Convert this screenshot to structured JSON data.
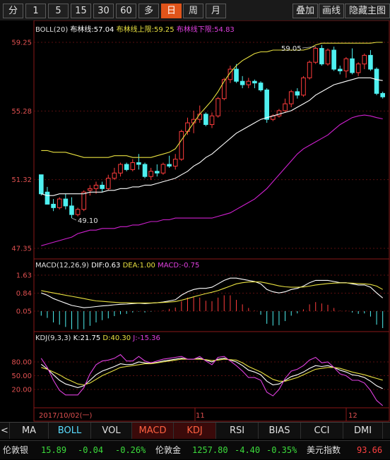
{
  "toolbar": {
    "periods": [
      "分",
      "1",
      "5",
      "15",
      "30",
      "60",
      "多",
      "日",
      "周",
      "月"
    ],
    "active_period": "日",
    "right_buttons": [
      "叠加",
      "画线",
      "隐藏主图"
    ]
  },
  "boll_header": {
    "name": "BOLL(20)",
    "mid": "布林线:57.04",
    "upper": "布林线上限:59.25",
    "lower": "布林线下限:54.83"
  },
  "main_axis": [
    "59.25",
    "55.28",
    "51.32",
    "47.35"
  ],
  "annotations": {
    "high": "59.05",
    "low": "49.10"
  },
  "macd_header": {
    "name": "MACD(12,26,9)",
    "dif": "DIF:0.63",
    "dea": "DEA:1.00",
    "macd": "MACD:-0.75"
  },
  "macd_axis": [
    "1.63",
    "0.84",
    "0.05"
  ],
  "kdj_header": {
    "name": "KDJ(9,3,3)",
    "k": "K:21.75",
    "d": "D:40.30",
    "j": "J:-15.36"
  },
  "kdj_axis": [
    "80.00",
    "50.00",
    "20.00"
  ],
  "date_axis": {
    "start": "2017/10/02(一)",
    "m11": "11",
    "m12": "12"
  },
  "tabs": [
    "<",
    "MA",
    "BOLL",
    "VOL",
    "MACD",
    "KDJ",
    "RSI",
    "BIAS",
    "CCI",
    "DMI"
  ],
  "ticker": [
    {
      "name": "伦敦银",
      "price": "15.89",
      "chg": "-0.04",
      "pct": "-0.26%"
    },
    {
      "name": "伦敦金",
      "price": "1257.80",
      "chg": "-4.40",
      "pct": "-0.35%"
    },
    {
      "name": "美元指数",
      "price": "93.66"
    }
  ],
  "colors": {
    "up": "#ff3c3c",
    "down": "#4ff0f0",
    "boll_mid": "#ffffff",
    "boll_upper": "#e8e040",
    "boll_lower": "#d020d0",
    "axis_red": "#e05050",
    "active_tab_orange": "#e0541a"
  },
  "chart_data": {
    "type": "candlestick",
    "price_axis_ticks": [
      59.25,
      55.28,
      51.32,
      47.35
    ],
    "ohlc": [
      [
        51.6,
        51.6,
        50.4,
        50.5
      ],
      [
        50.6,
        50.9,
        49.9,
        49.9
      ],
      [
        49.9,
        50.2,
        49.5,
        49.7
      ],
      [
        49.7,
        50.3,
        49.6,
        50.2
      ],
      [
        50.2,
        50.5,
        49.6,
        49.8
      ],
      [
        49.8,
        50.3,
        49.1,
        49.3
      ],
      [
        49.3,
        49.7,
        49.2,
        49.6
      ],
      [
        49.6,
        50.7,
        49.5,
        50.6
      ],
      [
        50.7,
        51.0,
        50.4,
        50.8
      ],
      [
        50.8,
        51.2,
        50.5,
        51.0
      ],
      [
        51.0,
        51.2,
        50.6,
        50.8
      ],
      [
        50.8,
        51.6,
        50.7,
        51.4
      ],
      [
        51.4,
        52.0,
        51.3,
        51.7
      ],
      [
        51.7,
        52.3,
        51.5,
        52.2
      ],
      [
        52.2,
        52.3,
        51.8,
        51.9
      ],
      [
        51.9,
        52.5,
        51.8,
        52.3
      ],
      [
        52.3,
        52.8,
        51.9,
        52.2
      ],
      [
        52.2,
        52.3,
        51.4,
        51.5
      ],
      [
        51.5,
        52.0,
        51.3,
        51.8
      ],
      [
        51.8,
        52.2,
        51.5,
        51.7
      ],
      [
        51.7,
        52.3,
        51.6,
        52.2
      ],
      [
        52.2,
        52.7,
        52.0,
        52.1
      ],
      [
        52.1,
        52.8,
        51.9,
        52.5
      ],
      [
        52.5,
        54.2,
        52.4,
        54.1
      ],
      [
        54.1,
        54.9,
        53.9,
        54.6
      ],
      [
        54.6,
        55.3,
        54.0,
        54.8
      ],
      [
        54.8,
        55.6,
        54.6,
        55.1
      ],
      [
        55.1,
        55.2,
        54.4,
        54.5
      ],
      [
        54.5,
        55.2,
        54.3,
        55.0
      ],
      [
        55.0,
        56.1,
        54.9,
        56.0
      ],
      [
        56.0,
        57.2,
        55.9,
        57.1
      ],
      [
        57.1,
        57.9,
        56.9,
        57.7
      ],
      [
        57.7,
        58.0,
        56.9,
        57.0
      ],
      [
        57.0,
        57.3,
        56.6,
        56.8
      ],
      [
        56.8,
        57.2,
        56.6,
        57.0
      ],
      [
        57.0,
        57.1,
        56.6,
        56.9
      ],
      [
        56.9,
        57.0,
        56.4,
        56.5
      ],
      [
        56.5,
        56.6,
        54.6,
        54.8
      ],
      [
        54.8,
        55.1,
        54.7,
        55.0
      ],
      [
        55.0,
        55.4,
        54.9,
        55.3
      ],
      [
        55.3,
        56.0,
        55.2,
        55.7
      ],
      [
        55.7,
        56.5,
        55.5,
        56.4
      ],
      [
        56.4,
        56.6,
        56.0,
        56.2
      ],
      [
        56.2,
        57.3,
        56.1,
        57.2
      ],
      [
        57.2,
        58.2,
        57.1,
        58.1
      ],
      [
        58.1,
        59.0,
        58.0,
        58.9
      ],
      [
        58.9,
        59.1,
        57.9,
        58.0
      ],
      [
        58.0,
        58.9,
        57.9,
        58.8
      ],
      [
        58.8,
        59.0,
        57.6,
        57.7
      ],
      [
        57.7,
        57.9,
        57.4,
        57.6
      ],
      [
        57.6,
        58.4,
        57.2,
        58.3
      ],
      [
        58.3,
        58.9,
        57.4,
        57.5
      ],
      [
        57.5,
        58.1,
        57.3,
        58.0
      ],
      [
        58.0,
        58.6,
        57.7,
        58.5
      ],
      [
        58.5,
        58.8,
        57.6,
        57.7
      ],
      [
        57.7,
        57.8,
        56.2,
        56.3
      ],
      [
        56.3,
        56.4,
        56.0,
        56.1
      ]
    ],
    "boll_upper": [
      53.0,
      53.0,
      52.9,
      52.9,
      52.9,
      52.8,
      52.7,
      52.6,
      52.6,
      52.6,
      52.6,
      52.6,
      52.7,
      52.7,
      52.7,
      52.6,
      52.6,
      52.6,
      52.6,
      52.7,
      52.8,
      52.9,
      53.1,
      53.6,
      54.1,
      54.6,
      55.1,
      55.5,
      55.9,
      56.4,
      57.0,
      57.5,
      57.9,
      58.2,
      58.4,
      58.6,
      58.7,
      58.7,
      58.8,
      58.8,
      58.8,
      58.8,
      58.8,
      58.8,
      58.9,
      59.1,
      59.2,
      59.2,
      59.2,
      59.2,
      59.2,
      59.2,
      59.2,
      59.2,
      59.2,
      59.25,
      59.25
    ],
    "boll_mid": [
      50.5,
      50.4,
      50.4,
      50.5,
      50.5,
      50.5,
      50.5,
      50.5,
      50.6,
      50.6,
      50.6,
      50.7,
      50.7,
      50.8,
      50.8,
      50.9,
      50.9,
      51.0,
      51.0,
      51.1,
      51.2,
      51.3,
      51.4,
      51.6,
      51.8,
      52.1,
      52.3,
      52.6,
      52.8,
      53.1,
      53.4,
      53.7,
      54.0,
      54.2,
      54.4,
      54.6,
      54.8,
      54.9,
      55.0,
      55.1,
      55.2,
      55.3,
      55.5,
      55.7,
      55.9,
      56.2,
      56.4,
      56.6,
      56.8,
      56.9,
      57.0,
      57.1,
      57.2,
      57.2,
      57.2,
      57.1,
      57.04
    ],
    "boll_lower": [
      47.5,
      47.6,
      47.7,
      47.8,
      47.9,
      48.0,
      48.2,
      48.3,
      48.4,
      48.4,
      48.5,
      48.5,
      48.5,
      48.6,
      48.6,
      48.7,
      48.7,
      48.8,
      48.9,
      48.9,
      49.0,
      49.0,
      49.1,
      49.1,
      49.1,
      49.1,
      49.1,
      49.1,
      49.1,
      49.2,
      49.3,
      49.4,
      49.6,
      49.8,
      50.0,
      50.2,
      50.5,
      50.8,
      51.2,
      51.6,
      52.0,
      52.4,
      52.8,
      53.1,
      53.3,
      53.5,
      53.7,
      53.9,
      54.2,
      54.5,
      54.7,
      54.9,
      55.0,
      55.05,
      55.0,
      54.9,
      54.83
    ],
    "macd": {
      "ticks": [
        1.63,
        0.84,
        0.05
      ],
      "dif": [
        0.85,
        0.75,
        0.6,
        0.5,
        0.4,
        0.3,
        0.25,
        0.2,
        0.22,
        0.25,
        0.28,
        0.3,
        0.33,
        0.35,
        0.36,
        0.38,
        0.4,
        0.38,
        0.4,
        0.42,
        0.45,
        0.5,
        0.55,
        0.75,
        0.9,
        1.0,
        1.05,
        1.05,
        1.1,
        1.25,
        1.4,
        1.5,
        1.5,
        1.45,
        1.4,
        1.35,
        1.25,
        1.0,
        0.9,
        0.85,
        0.9,
        1.0,
        1.05,
        1.15,
        1.3,
        1.4,
        1.4,
        1.4,
        1.35,
        1.3,
        1.3,
        1.25,
        1.2,
        1.2,
        1.1,
        0.85,
        0.63
      ],
      "dea": [
        0.95,
        0.9,
        0.85,
        0.8,
        0.75,
        0.7,
        0.65,
        0.6,
        0.55,
        0.5,
        0.48,
        0.46,
        0.44,
        0.42,
        0.42,
        0.41,
        0.41,
        0.41,
        0.41,
        0.42,
        0.43,
        0.45,
        0.47,
        0.53,
        0.6,
        0.68,
        0.75,
        0.82,
        0.88,
        0.95,
        1.05,
        1.15,
        1.25,
        1.3,
        1.33,
        1.34,
        1.33,
        1.28,
        1.22,
        1.16,
        1.12,
        1.1,
        1.1,
        1.11,
        1.15,
        1.2,
        1.23,
        1.26,
        1.28,
        1.29,
        1.29,
        1.28,
        1.26,
        1.25,
        1.22,
        1.15,
        1.0
      ],
      "hist": [
        -0.2,
        -0.3,
        -0.5,
        -0.6,
        -0.7,
        -0.8,
        -0.8,
        -0.8,
        -0.65,
        -0.5,
        -0.4,
        -0.32,
        -0.22,
        -0.14,
        -0.12,
        -0.06,
        -0.02,
        -0.06,
        -0.02,
        0.0,
        0.04,
        0.1,
        0.16,
        0.44,
        0.6,
        0.64,
        0.6,
        0.46,
        0.44,
        0.6,
        0.7,
        0.7,
        0.5,
        0.3,
        0.14,
        0.02,
        -0.16,
        -0.56,
        -0.64,
        -0.62,
        -0.44,
        -0.2,
        -0.1,
        0.08,
        0.3,
        0.4,
        0.34,
        0.28,
        0.14,
        0.02,
        0.02,
        -0.06,
        -0.12,
        -0.1,
        -0.24,
        -0.6,
        -0.75
      ]
    },
    "kdj": {
      "ticks": [
        80,
        50,
        20
      ],
      "k": [
        75,
        65,
        52,
        40,
        32,
        28,
        24,
        28,
        40,
        52,
        60,
        65,
        70,
        76,
        74,
        75,
        80,
        78,
        77,
        79,
        82,
        84,
        86,
        88,
        86,
        86,
        88,
        84,
        80,
        86,
        88,
        84,
        80,
        72,
        62,
        58,
        52,
        38,
        30,
        32,
        40,
        48,
        52,
        58,
        66,
        72,
        70,
        72,
        68,
        62,
        58,
        52,
        50,
        46,
        38,
        28,
        21.75
      ],
      "d": [
        68,
        64,
        58,
        52,
        44,
        38,
        32,
        30,
        34,
        42,
        50,
        56,
        62,
        68,
        70,
        72,
        74,
        76,
        76,
        78,
        80,
        82,
        84,
        86,
        86,
        86,
        86,
        85,
        83,
        84,
        86,
        85,
        84,
        78,
        70,
        64,
        58,
        50,
        42,
        38,
        38,
        42,
        46,
        52,
        58,
        64,
        66,
        68,
        68,
        66,
        62,
        58,
        55,
        52,
        48,
        44,
        40.3
      ],
      "j": [
        88,
        68,
        40,
        18,
        8,
        8,
        8,
        24,
        54,
        74,
        82,
        84,
        88,
        96,
        82,
        82,
        92,
        82,
        78,
        82,
        86,
        88,
        90,
        92,
        86,
        86,
        92,
        82,
        74,
        90,
        92,
        82,
        72,
        60,
        46,
        46,
        40,
        14,
        6,
        20,
        44,
        60,
        64,
        72,
        84,
        90,
        78,
        80,
        68,
        54,
        50,
        40,
        40,
        34,
        18,
        -4,
        -15.36
      ]
    }
  }
}
